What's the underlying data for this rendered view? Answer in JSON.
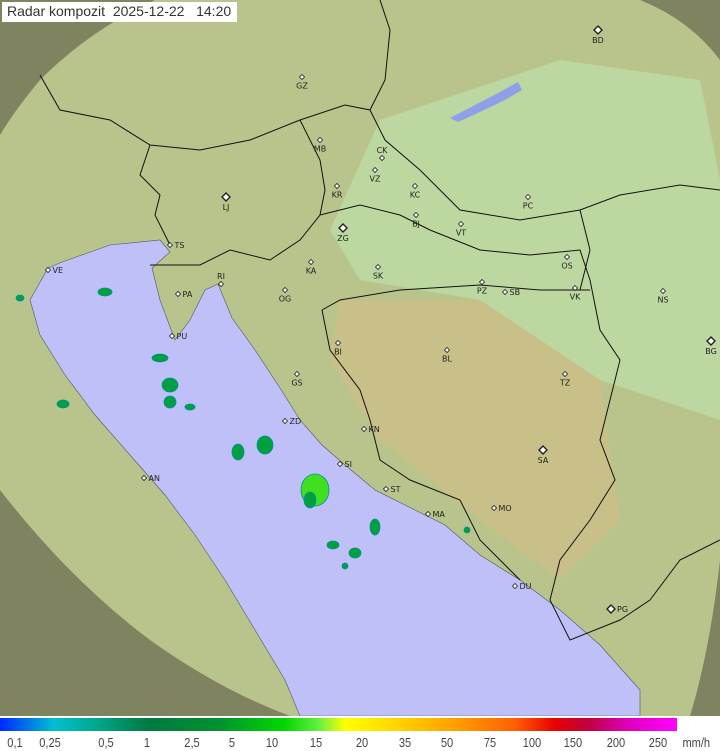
{
  "title": "Radar kompozit  2025-12-22   14:20",
  "colors": {
    "land": "#b8c890",
    "sea": "#c0c0f8",
    "outside": "#7a7a58",
    "border": "#111111",
    "rain_light": "#00a040",
    "rain_heavy": "#40e020"
  },
  "cities": [
    "GZ",
    "BD",
    "MB",
    "CK",
    "VZ",
    "KR",
    "KC",
    "PC",
    "LJ",
    "BJ",
    "VT",
    "ZG",
    "TS",
    "VE",
    "KA",
    "SK",
    "OS",
    "RI",
    "PA",
    "OG",
    "PZ",
    "SB",
    "VK",
    "NS",
    "PU",
    "BI",
    "BL",
    "BG",
    "GS",
    "TZ",
    "ZD",
    "KN",
    "SA",
    "SI",
    "AN",
    "ST",
    "MO",
    "MA",
    "DU",
    "PG"
  ],
  "legend": {
    "ticks": [
      "0,1",
      "0,25",
      "0,5",
      "1",
      "2,5",
      "5",
      "10",
      "15",
      "20",
      "35",
      "50",
      "75",
      "100",
      "150",
      "200",
      "250"
    ],
    "unit": "mm/h"
  }
}
